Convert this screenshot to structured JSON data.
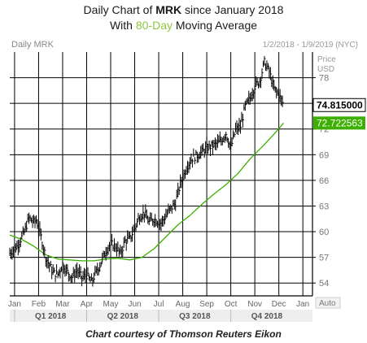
{
  "header": {
    "line1_prefix": "Daily Chart of ",
    "line1_ticker": "MRK",
    "line1_suffix": " since January 2018",
    "line2_prefix": "With ",
    "line2_highlight": "80-Day",
    "line2_suffix": " Moving Average"
  },
  "footer": {
    "credit": "Chart courtesy of Thomson Reuters Eikon"
  },
  "colors": {
    "price": "#000000",
    "ma": "#3cb000",
    "accent": "#8cc63f",
    "grid": "#000000"
  },
  "chart_data": {
    "type": "line",
    "chart_label": "Daily MRK",
    "date_range": "1/2/2018 - 1/9/2019 (NYC)",
    "y_axis_title": [
      "Price",
      "USD"
    ],
    "y_ticks": [
      54,
      57,
      60,
      63,
      66,
      69,
      72,
      75,
      78
    ],
    "ylim": [
      52.5,
      81
    ],
    "x_months": [
      "Jan",
      "Feb",
      "Mar",
      "Apr",
      "May",
      "Jun",
      "Jul",
      "Aug",
      "Sep",
      "Oct",
      "Nov",
      "Dec",
      "Jan"
    ],
    "quarters": [
      "Q1 2018",
      "Q2 2018",
      "Q3 2018",
      "Q4 2018"
    ],
    "auto_label": "Auto",
    "series": [
      {
        "name": "MRK",
        "last_label": "74.815000",
        "points": [
          [
            0.0,
            57.5
          ],
          [
            0.3,
            58.3
          ],
          [
            0.6,
            59.9
          ],
          [
            0.8,
            61.6
          ],
          [
            1.0,
            61.1
          ],
          [
            1.1,
            61.4
          ],
          [
            1.3,
            59.4
          ],
          [
            1.5,
            57.0
          ],
          [
            1.8,
            55.2
          ],
          [
            2.0,
            55.0
          ],
          [
            2.2,
            56.2
          ],
          [
            2.4,
            55.3
          ],
          [
            2.6,
            54.7
          ],
          [
            2.8,
            55.5
          ],
          [
            3.0,
            54.6
          ],
          [
            3.2,
            54.9
          ],
          [
            3.4,
            54.1
          ],
          [
            3.6,
            55.3
          ],
          [
            3.8,
            56.4
          ],
          [
            4.0,
            57.8
          ],
          [
            4.2,
            58.6
          ],
          [
            4.4,
            58.3
          ],
          [
            4.6,
            57.4
          ],
          [
            4.8,
            58.9
          ],
          [
            5.0,
            59.2
          ],
          [
            5.2,
            60.4
          ],
          [
            5.4,
            61.8
          ],
          [
            5.6,
            62.2
          ],
          [
            5.8,
            61.1
          ],
          [
            6.0,
            61.5
          ],
          [
            6.3,
            61.0
          ],
          [
            6.6,
            62.3
          ],
          [
            6.9,
            63.4
          ],
          [
            7.1,
            65.6
          ],
          [
            7.4,
            67.8
          ],
          [
            7.6,
            68.6
          ],
          [
            7.9,
            69.1
          ],
          [
            8.2,
            69.8
          ],
          [
            8.5,
            70.1
          ],
          [
            8.8,
            70.6
          ],
          [
            9.0,
            71.5
          ],
          [
            9.2,
            69.8
          ],
          [
            9.4,
            71.9
          ],
          [
            9.6,
            72.3
          ],
          [
            9.8,
            74.6
          ],
          [
            10.0,
            75.6
          ],
          [
            10.2,
            77.0
          ],
          [
            10.4,
            77.6
          ],
          [
            10.6,
            79.8
          ],
          [
            10.8,
            78.7
          ],
          [
            11.0,
            76.7
          ],
          [
            11.2,
            76.0
          ],
          [
            11.4,
            74.8
          ]
        ]
      },
      {
        "name": "80-Day MA",
        "last_label": "72.722563",
        "points": [
          [
            0.0,
            59.6
          ],
          [
            0.5,
            59.1
          ],
          [
            1.0,
            58.3
          ],
          [
            1.5,
            57.3
          ],
          [
            2.0,
            56.8
          ],
          [
            2.5,
            56.7
          ],
          [
            3.0,
            56.6
          ],
          [
            3.5,
            56.6
          ],
          [
            4.0,
            56.8
          ],
          [
            4.5,
            56.9
          ],
          [
            5.0,
            56.7
          ],
          [
            5.5,
            57.0
          ],
          [
            6.0,
            58.0
          ],
          [
            6.5,
            59.4
          ],
          [
            7.0,
            60.8
          ],
          [
            7.5,
            61.9
          ],
          [
            8.0,
            63.2
          ],
          [
            8.5,
            64.4
          ],
          [
            9.0,
            65.5
          ],
          [
            9.5,
            66.8
          ],
          [
            10.0,
            68.5
          ],
          [
            10.5,
            69.9
          ],
          [
            11.0,
            71.4
          ],
          [
            11.4,
            72.7
          ]
        ]
      }
    ]
  }
}
